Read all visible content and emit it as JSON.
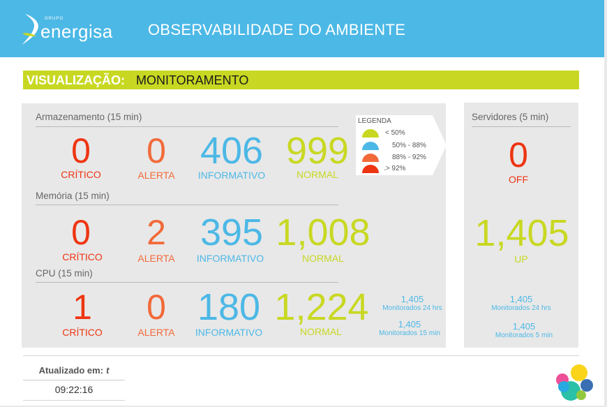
{
  "header": {
    "logo_small": "GRUPO",
    "logo_brand": "energisa",
    "title": "OBSERVABILIDADE DO AMBIENTE"
  },
  "visualization": {
    "label": "VISUALIZAÇÃO:",
    "value": "MONITORAMENTO"
  },
  "legend": {
    "title": "LEGENDA",
    "items": [
      {
        "color": "#c8d822",
        "text": "< 50%"
      },
      {
        "color": "#4cb8e6",
        "text": "50% - 88%"
      },
      {
        "color": "#f26a3a",
        "text": "88% - 92%"
      },
      {
        "color": "#ee3512",
        "text": ".> 92%"
      }
    ]
  },
  "storage": {
    "title": "Armazenamento (15 min)",
    "critical": "0",
    "critical_label": "CRÍTICO",
    "alert": "0",
    "alert_label": "ALERTA",
    "info": "406",
    "info_label": "INFORMATIVO",
    "normal": "999",
    "normal_label": "NORMAL"
  },
  "memory": {
    "title": "Memória (15 min)",
    "critical": "0",
    "critical_label": "CRÍTICO",
    "alert": "2",
    "alert_label": "ALERTA",
    "info": "395",
    "info_label": "INFORMATIVO",
    "normal": "1,008",
    "normal_label": "NORMAL"
  },
  "cpu": {
    "title": "CPU (15 min)",
    "critical": "1",
    "critical_label": "CRÍTICO",
    "alert": "0",
    "alert_label": "ALERTA",
    "info": "180",
    "info_label": "INFORMATIVO",
    "normal": "1,224",
    "normal_label": "NORMAL",
    "monitored_24h": "1,405",
    "monitored_24h_label": "Monitorados 24 hrs",
    "monitored_15m": "1,405",
    "monitored_15m_label": "Monitorados 15 min"
  },
  "servers": {
    "title": "Servidores (5 min)",
    "off": "0",
    "off_label": "OFF",
    "up": "1,405",
    "up_label": "UP",
    "monitored_24h": "1,405",
    "monitored_24h_label": "Monitorados 24 hrs",
    "monitored_5m": "1,405",
    "monitored_5m_label": "Monitorados 5 min"
  },
  "updated": {
    "label": "Atualizado em:",
    "suffix": "t",
    "time": "09:22:16"
  },
  "colors": {
    "header": "#4cb8e6",
    "critical": "#ee3512",
    "alert": "#f26a3a",
    "info": "#4cb8e6",
    "normal": "#c8d822"
  }
}
